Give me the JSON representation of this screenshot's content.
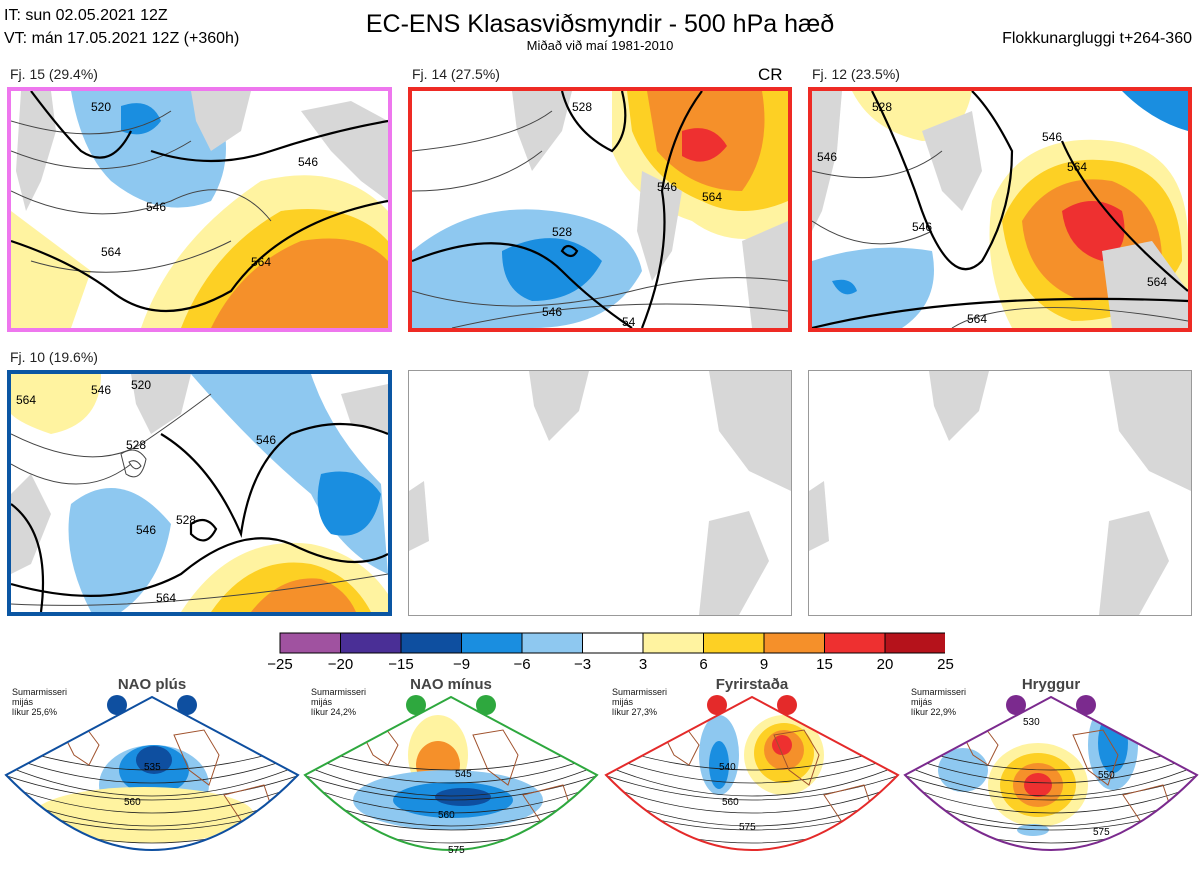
{
  "header": {
    "it_line": "IT: sun 02.05.2021 12Z",
    "vt_line": "VT: mán 17.05.2021 12Z  (+360h)",
    "title": "EC-ENS Klasasviðsmyndir - 500 hPa hæð",
    "subtitle": "Miðað við maí 1981-2010",
    "window": "Flokkunargluggi t+264-360"
  },
  "panels": [
    {
      "label": "Fj. 15 (29.4%)",
      "border": "#ee77ee",
      "contours": [
        "546",
        "546",
        "564",
        "564",
        "520"
      ]
    },
    {
      "label": "Fj. 14 (27.5%)",
      "border": "#ee2a24",
      "badge": "CR",
      "contours": [
        "528",
        "528",
        "546",
        "546",
        "564",
        "54"
      ]
    },
    {
      "label": "Fj. 12 (23.5%)",
      "border": "#ee2a24",
      "contours": [
        "546",
        "546",
        "528",
        "564",
        "564",
        "564",
        "546"
      ]
    },
    {
      "label": "Fj. 10 (19.6%)",
      "border": "#0a56a3",
      "contours": [
        "564",
        "546",
        "520",
        "528",
        "528",
        "546",
        "546",
        "564"
      ]
    },
    {
      "label": ""
    },
    {
      "label": ""
    }
  ],
  "colorbar": {
    "colors": [
      "#a052a0",
      "#4a2f96",
      "#0e4fa0",
      "#1a8ee0",
      "#8ec8f0",
      "#ffffff",
      "#fff3a0",
      "#fdd024",
      "#f5902a",
      "#ee3030",
      "#b5121b"
    ],
    "ticks": [
      "−25",
      "−20",
      "−15",
      "−9",
      "−6",
      "−3",
      "3",
      "6",
      "9",
      "15",
      "20",
      "25"
    ]
  },
  "regimes": [
    {
      "name": "NAO plús",
      "season": "Sumarmisseri",
      "medium": "mijás",
      "prob": "líkur 25,6%",
      "color": "#0e4fa0",
      "contours": [
        "535",
        "560"
      ]
    },
    {
      "name": "NAO mínus",
      "season": "Sumarmisseri",
      "medium": "mijás",
      "prob": "líkur 24,2%",
      "color": "#2ea83e",
      "contours": [
        "545",
        "560",
        "575"
      ]
    },
    {
      "name": "Fyrirstaða",
      "season": "Sumarmisseri",
      "medium": "mijás",
      "prob": "líkur 27,3%",
      "color": "#e42a2a",
      "contours": [
        "540",
        "560",
        "575"
      ]
    },
    {
      "name": "Hryggur",
      "season": "Sumarmisseri",
      "medium": "mijás",
      "prob": "líkur 22,9%",
      "color": "#7b2a8e",
      "contours": [
        "530",
        "550",
        "575"
      ]
    }
  ]
}
